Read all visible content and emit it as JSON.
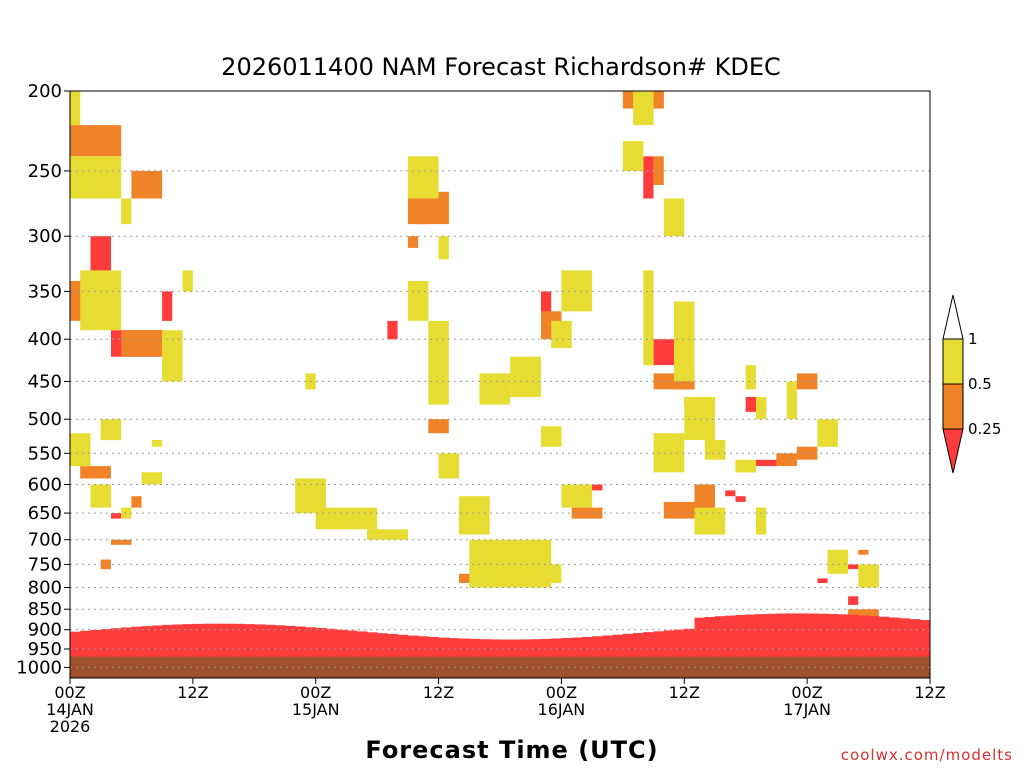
{
  "chart_data": {
    "type": "heatmap",
    "title": "2026011400 NAM Forecast Richardson# KDEC",
    "xlabel": "Forecast Time (UTC)",
    "ylabel": "",
    "y_scale": "log-pressure",
    "ylim": [
      1000,
      200
    ],
    "y_ticks": [
      200,
      250,
      300,
      350,
      400,
      450,
      500,
      550,
      600,
      650,
      700,
      750,
      800,
      850,
      900,
      950,
      1000
    ],
    "x_range_hours": [
      0,
      84
    ],
    "x_ticks": [
      {
        "hour": 0,
        "labels": [
          "00Z",
          "14JAN",
          "2026"
        ]
      },
      {
        "hour": 12,
        "labels": [
          "12Z"
        ]
      },
      {
        "hour": 24,
        "labels": [
          "00Z",
          "15JAN"
        ]
      },
      {
        "hour": 36,
        "labels": [
          "12Z"
        ]
      },
      {
        "hour": 48,
        "labels": [
          "00Z",
          "16JAN"
        ]
      },
      {
        "hour": 60,
        "labels": [
          "12Z"
        ]
      },
      {
        "hour": 72,
        "labels": [
          "00Z",
          "17JAN"
        ]
      },
      {
        "hour": 84,
        "labels": [
          "12Z"
        ]
      }
    ],
    "grid": "dotted horizontal at pressure ticks",
    "colorbar": {
      "placement": "right",
      "bins": [
        {
          "range": [
            null,
            0.25
          ],
          "color": "#ff3c3c"
        },
        {
          "range": [
            0.25,
            0.5
          ],
          "color": "#f08228"
        },
        {
          "range": [
            0.5,
            1
          ],
          "color": "#e6dc32"
        },
        {
          "range": [
            1,
            null
          ],
          "color": "#ffffff"
        }
      ],
      "labels": [
        "1",
        "0.5",
        "0.25"
      ]
    },
    "ground": {
      "below_pressure": 970,
      "color": "#a0522d"
    },
    "series": [
      {
        "range": "<0.25",
        "color": "#ff3c3c",
        "cells": [
          [
            2,
            300,
            4,
            340
          ],
          [
            4,
            390,
            9,
            420
          ],
          [
            9,
            350,
            10,
            380
          ],
          [
            4,
            650,
            5,
            660
          ],
          [
            31,
            380,
            32,
            400
          ],
          [
            34,
            270,
            35,
            290
          ],
          [
            46,
            350,
            47,
            380
          ],
          [
            50,
            600,
            52,
            610
          ],
          [
            56,
            240,
            57,
            270
          ],
          [
            57,
            400,
            59,
            430
          ],
          [
            59,
            440,
            61,
            460
          ],
          [
            60,
            470,
            61,
            480
          ],
          [
            65,
            620,
            66,
            630
          ],
          [
            64,
            610,
            65,
            620
          ],
          [
            66,
            470,
            68,
            490
          ],
          [
            67,
            560,
            69,
            570
          ],
          [
            73,
            780,
            74,
            790
          ],
          [
            75,
            750,
            77,
            760
          ],
          [
            76,
            820,
            77,
            840
          ]
        ]
      },
      {
        "range": "0.25-0.5",
        "color": "#f08228",
        "cells": [
          [
            0,
            220,
            5,
            240
          ],
          [
            0,
            340,
            4,
            380
          ],
          [
            5,
            390,
            9,
            420
          ],
          [
            6,
            250,
            9,
            270
          ],
          [
            1,
            570,
            4,
            590
          ],
          [
            6,
            620,
            7,
            640
          ],
          [
            4,
            700,
            6,
            710
          ],
          [
            3,
            740,
            4,
            760
          ],
          [
            33,
            265,
            37,
            290
          ],
          [
            33,
            300,
            34,
            310
          ],
          [
            35,
            500,
            37,
            520
          ],
          [
            38,
            770,
            44,
            790
          ],
          [
            46,
            370,
            48,
            400
          ],
          [
            49,
            640,
            52,
            660
          ],
          [
            54,
            200,
            58,
            210
          ],
          [
            57,
            240,
            58,
            260
          ],
          [
            57,
            440,
            61,
            460
          ],
          [
            58,
            630,
            61,
            660
          ],
          [
            61,
            600,
            63,
            650
          ],
          [
            69,
            550,
            71,
            570
          ],
          [
            71,
            540,
            73,
            560
          ],
          [
            71,
            440,
            73,
            460
          ],
          [
            77,
            720,
            78,
            730
          ],
          [
            76,
            850,
            79,
            880
          ]
        ]
      },
      {
        "range": "0.5-1",
        "color": "#e6dc32",
        "cells": [
          [
            0,
            200,
            1,
            220
          ],
          [
            0,
            240,
            5,
            270
          ],
          [
            1,
            330,
            5,
            390
          ],
          [
            5,
            270,
            6,
            290
          ],
          [
            9,
            390,
            11,
            450
          ],
          [
            11,
            330,
            12,
            350
          ],
          [
            0,
            520,
            2,
            570
          ],
          [
            3,
            500,
            5,
            530
          ],
          [
            2,
            600,
            4,
            640
          ],
          [
            5,
            640,
            6,
            660
          ],
          [
            7,
            580,
            9,
            600
          ],
          [
            8,
            530,
            9,
            540
          ],
          [
            22,
            590,
            25,
            650
          ],
          [
            24,
            640,
            30,
            680
          ],
          [
            29,
            680,
            33,
            700
          ],
          [
            23,
            440,
            24,
            460
          ],
          [
            33,
            240,
            36,
            270
          ],
          [
            33,
            340,
            35,
            380
          ],
          [
            36,
            300,
            37,
            320
          ],
          [
            35,
            380,
            37,
            480
          ],
          [
            36,
            550,
            38,
            590
          ],
          [
            38,
            620,
            41,
            690
          ],
          [
            39,
            700,
            47,
            800
          ],
          [
            40,
            440,
            43,
            480
          ],
          [
            43,
            420,
            46,
            470
          ],
          [
            46,
            510,
            48,
            540
          ],
          [
            47,
            380,
            49,
            410
          ],
          [
            45,
            750,
            48,
            790
          ],
          [
            48,
            330,
            51,
            370
          ],
          [
            48,
            600,
            51,
            640
          ],
          [
            54,
            230,
            56,
            250
          ],
          [
            55,
            200,
            57,
            220
          ],
          [
            56,
            330,
            57,
            430
          ],
          [
            57,
            520,
            60,
            580
          ],
          [
            58,
            270,
            60,
            300
          ],
          [
            59,
            360,
            61,
            450
          ],
          [
            60,
            470,
            63,
            530
          ],
          [
            62,
            530,
            64,
            560
          ],
          [
            61,
            640,
            64,
            690
          ],
          [
            65,
            560,
            67,
            580
          ],
          [
            66,
            430,
            67,
            460
          ],
          [
            67,
            470,
            68,
            500
          ],
          [
            67,
            640,
            68,
            690
          ],
          [
            70,
            450,
            71,
            500
          ],
          [
            73,
            500,
            75,
            540
          ],
          [
            74,
            720,
            76,
            770
          ],
          [
            77,
            750,
            79,
            800
          ]
        ]
      }
    ]
  },
  "footer": {
    "credit": "coolwx.com/modelts"
  }
}
